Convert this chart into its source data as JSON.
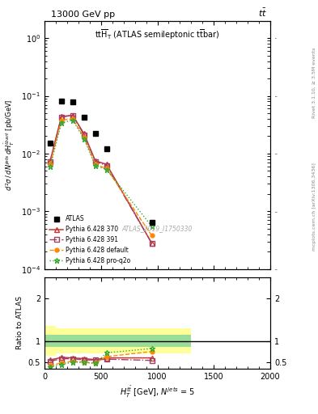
{
  "title_top": "13000 GeV pp",
  "title_top_right": "tt",
  "plot_title": "tt$\\overline{H}_{T}$ (ATLAS semileptonic t$\\overline{t}$bar)",
  "watermark": "ATLAS_2019_I1750330",
  "right_label_top": "Rivet 3.1.10, ≥ 3.5M events",
  "right_label_bottom": "mcplots.cern.ch [arXiv:1306.3436]",
  "x_bins": [
    0,
    100,
    200,
    300,
    400,
    500,
    600,
    1300
  ],
  "x_centers": [
    50,
    150,
    250,
    350,
    450,
    550,
    950
  ],
  "atlas_y": [
    0.015,
    0.082,
    0.078,
    0.043,
    0.022,
    0.012,
    0.00065
  ],
  "pythia_370_y": [
    0.0075,
    0.044,
    0.046,
    0.022,
    0.0075,
    0.0065,
    0.00028
  ],
  "pythia_391_y": [
    0.0072,
    0.043,
    0.046,
    0.021,
    0.0073,
    0.0062,
    0.00028
  ],
  "pythia_default_y": [
    0.0065,
    0.038,
    0.04,
    0.019,
    0.0065,
    0.0055,
    0.00038
  ],
  "pythia_pro_q2o_y": [
    0.006,
    0.034,
    0.038,
    0.018,
    0.0062,
    0.0053,
    0.00055
  ],
  "ratio_370": [
    0.55,
    0.61,
    0.6,
    0.58,
    0.56,
    0.6,
    0.6
  ],
  "ratio_391": [
    0.52,
    0.58,
    0.58,
    0.55,
    0.55,
    0.57,
    0.54
  ],
  "ratio_default": [
    0.42,
    0.48,
    0.52,
    0.5,
    0.48,
    0.63,
    0.75
  ],
  "ratio_pro_q2o": [
    0.39,
    0.44,
    0.5,
    0.49,
    0.47,
    0.72,
    0.82
  ],
  "yellow_lo": [
    0.65,
    0.7,
    0.7,
    0.7,
    0.7,
    0.7,
    0.7
  ],
  "yellow_hi": [
    1.35,
    1.3,
    1.3,
    1.3,
    1.3,
    1.3,
    1.3
  ],
  "green_lo": [
    0.85,
    0.85,
    0.85,
    0.85,
    0.85,
    0.85,
    0.85
  ],
  "green_hi": [
    1.15,
    1.15,
    1.15,
    1.15,
    1.15,
    1.15,
    1.15
  ],
  "color_370": "#cc3333",
  "color_391": "#994466",
  "color_default": "#ff8800",
  "color_pro_q2o": "#33aa33",
  "ylim_main": [
    0.0001,
    2.0
  ],
  "xlim": [
    0,
    2000
  ],
  "ratio_ylim": [
    0.35,
    2.5
  ],
  "ratio_yticks": [
    0.5,
    1.0,
    2.0
  ],
  "ratio_yticklabels": [
    "0.5",
    "1",
    "2"
  ]
}
